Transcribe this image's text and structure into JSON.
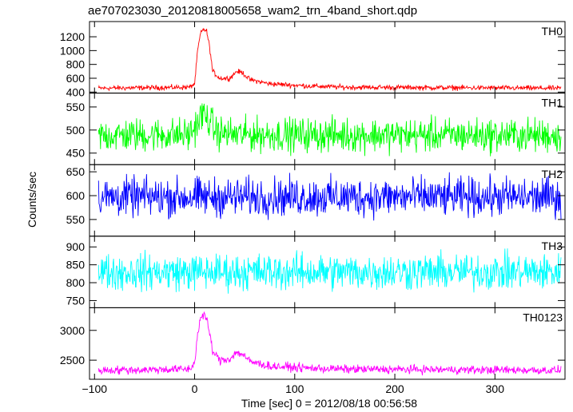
{
  "chart_data": {
    "type": "line",
    "title": "ae707023030_20120818005658_wam2_trn_4band_short.qdp",
    "xlabel": "Time [sec] 0 = 2012/08/18 00:56:58",
    "ylabel": "Counts/sec",
    "xlim": [
      -105,
      370
    ],
    "xticks": [
      -100,
      0,
      100,
      200,
      300
    ],
    "x_tick_labels": [
      "−100",
      "0",
      "100",
      "200",
      "300"
    ],
    "grid": false,
    "panels": [
      {
        "name": "TH0",
        "color": "#ff0000",
        "ylim": [
          385,
          1420
        ],
        "yticks": [
          400,
          600,
          800,
          1000,
          1200
        ],
        "baseline": 455,
        "noise": 18,
        "profile": [
          [
            -100,
            455
          ],
          [
            -5,
            470
          ],
          [
            0,
            520
          ],
          [
            3,
            1000
          ],
          [
            6,
            1250
          ],
          [
            9,
            1310
          ],
          [
            12,
            1280
          ],
          [
            15,
            1050
          ],
          [
            18,
            700
          ],
          [
            25,
            600
          ],
          [
            35,
            600
          ],
          [
            42,
            700
          ],
          [
            48,
            680
          ],
          [
            55,
            580
          ],
          [
            75,
            520
          ],
          [
            110,
            490
          ],
          [
            150,
            470
          ],
          [
            370,
            455
          ]
        ]
      },
      {
        "name": "TH1",
        "color": "#00ff00",
        "ylim": [
          425,
          580
        ],
        "yticks": [
          450,
          500,
          550
        ],
        "baseline": 488,
        "noise": 18,
        "profile": [
          [
            -100,
            488
          ],
          [
            -5,
            490
          ],
          [
            0,
            505
          ],
          [
            8,
            535
          ],
          [
            15,
            520
          ],
          [
            22,
            495
          ],
          [
            40,
            490
          ],
          [
            370,
            488
          ]
        ]
      },
      {
        "name": "TH2",
        "color": "#0000ff",
        "ylim": [
          515,
          665
        ],
        "yticks": [
          550,
          600,
          650
        ],
        "baseline": 597,
        "noise": 20,
        "profile": [
          [
            -100,
            597
          ],
          [
            370,
            597
          ]
        ]
      },
      {
        "name": "TH3",
        "color": "#00ffff",
        "ylim": [
          730,
          930
        ],
        "yticks": [
          750,
          800,
          850,
          900
        ],
        "baseline": 830,
        "noise": 25,
        "profile": [
          [
            -100,
            830
          ],
          [
            370,
            830
          ]
        ]
      },
      {
        "name": "TH0123",
        "color": "#ff00ff",
        "ylim": [
          2180,
          3380
        ],
        "yticks": [
          2500,
          3000
        ],
        "baseline": 2330,
        "noise": 35,
        "profile": [
          [
            -100,
            2330
          ],
          [
            -5,
            2350
          ],
          [
            0,
            2450
          ],
          [
            3,
            2950
          ],
          [
            6,
            3200
          ],
          [
            9,
            3280
          ],
          [
            12,
            3180
          ],
          [
            15,
            2950
          ],
          [
            18,
            2650
          ],
          [
            25,
            2500
          ],
          [
            35,
            2520
          ],
          [
            42,
            2630
          ],
          [
            48,
            2600
          ],
          [
            55,
            2480
          ],
          [
            75,
            2400
          ],
          [
            110,
            2370
          ],
          [
            150,
            2350
          ],
          [
            370,
            2330
          ]
        ]
      }
    ]
  }
}
